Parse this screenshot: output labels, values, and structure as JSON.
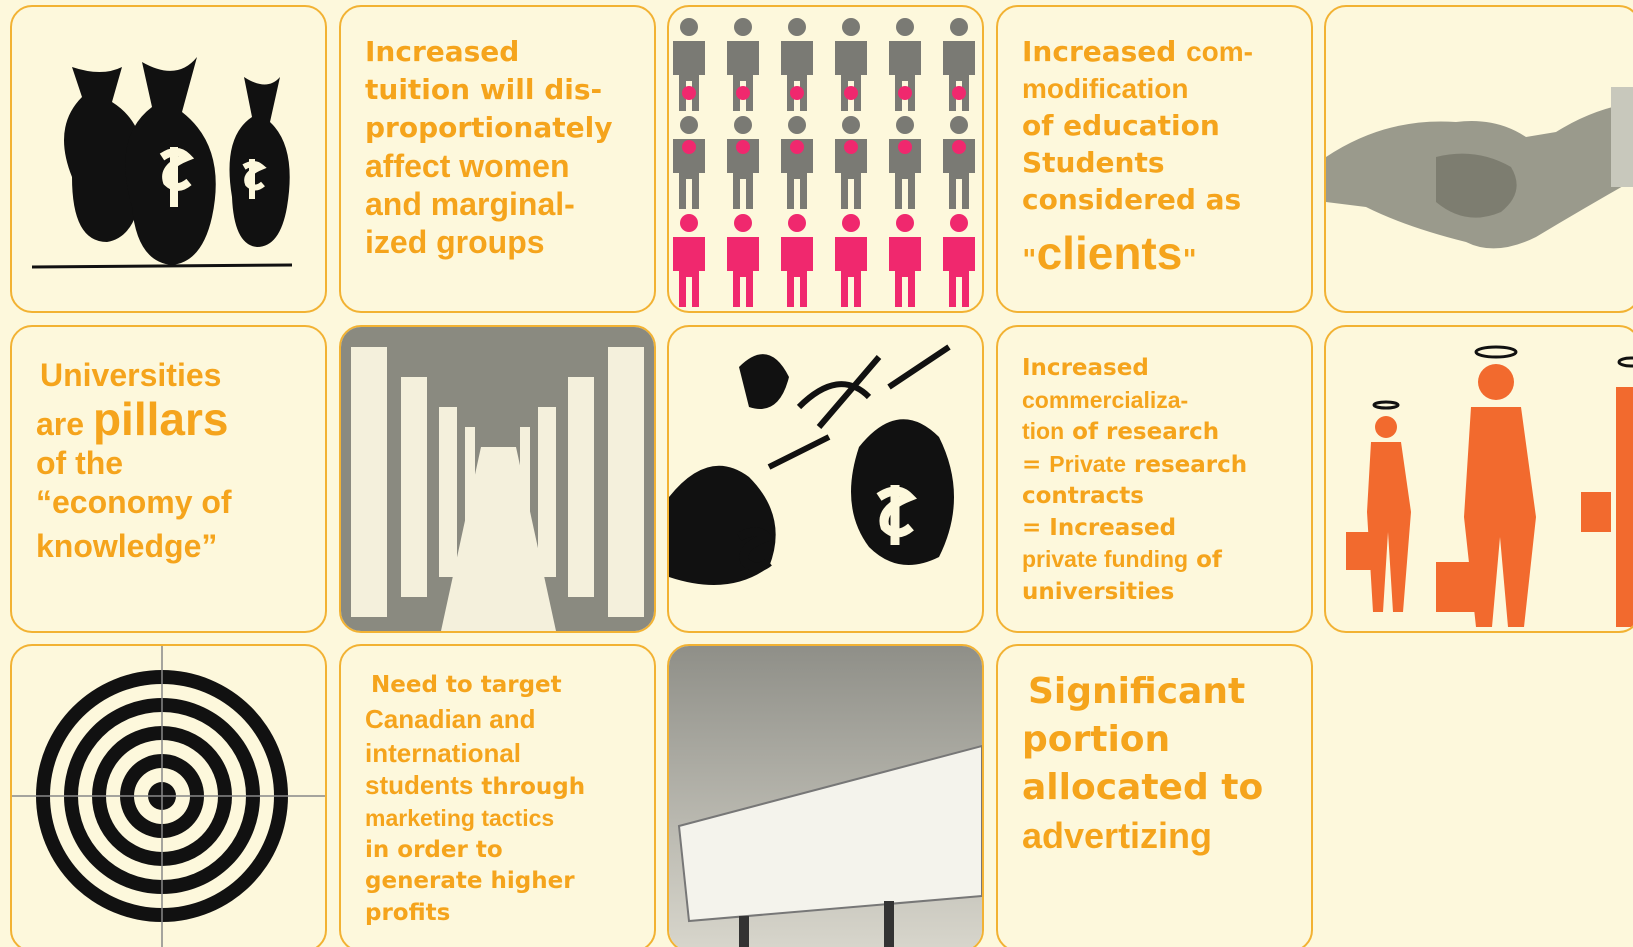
{
  "text_panels": [
    {
      "lines": [
        [
          "Increased"
        ],
        [
          "tuition will dis-"
        ],
        [
          "proportionately"
        ],
        [
          "affect women"
        ],
        [
          "and marginal-"
        ],
        [
          "ized groups"
        ]
      ]
    },
    {
      "lines": [
        [
          "Increased ",
          "com-"
        ],
        [
          "modification"
        ],
        [
          "of education"
        ],
        [
          "Students"
        ],
        [
          "considered as"
        ],
        [
          "\"",
          "clients",
          "\""
        ]
      ]
    },
    {
      "lines": [
        [
          "Universities"
        ],
        [
          "are ",
          "pillars"
        ],
        [
          "of the"
        ],
        [
          "“economy of"
        ],
        [
          "knowledge”"
        ]
      ]
    },
    {
      "lines": [
        [
          "Increased"
        ],
        [
          "commercializa-"
        ],
        [
          "tion",
          " of research"
        ],
        [
          "= ",
          "Private",
          " research"
        ],
        [
          "contracts"
        ],
        [
          "= Increased"
        ],
        [
          "private funding",
          " of"
        ],
        [
          "universities"
        ]
      ]
    },
    {
      "lines": [
        [
          "Need to target"
        ],
        [
          "Canadian and"
        ],
        [
          "international"
        ],
        [
          "students",
          " through"
        ],
        [
          "marketing tactics"
        ],
        [
          "in order to"
        ],
        [
          "generate higher"
        ],
        [
          "profits"
        ]
      ]
    },
    {
      "lines": [
        [
          "Significant"
        ],
        [
          "portion"
        ],
        [
          "allocated to"
        ],
        [
          "advertizing"
        ]
      ]
    }
  ]
}
